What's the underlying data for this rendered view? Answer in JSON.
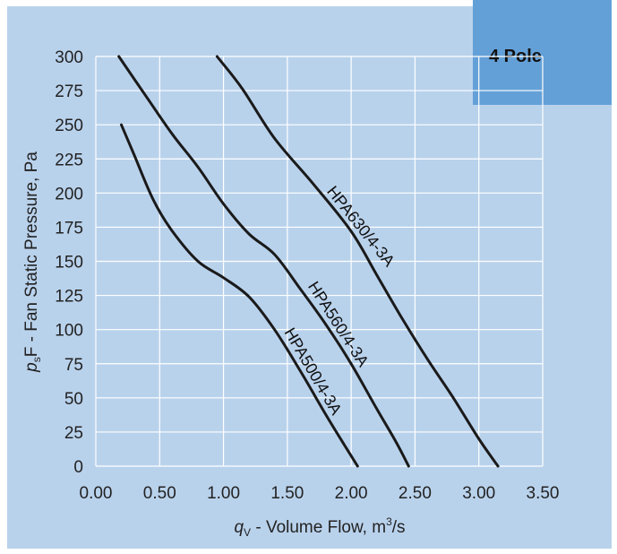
{
  "badge": {
    "label": "4 Pole"
  },
  "chart_data": {
    "type": "line",
    "xlabel": {
      "italic": "q",
      "sub": "V",
      "rest": " - Volume Flow, m",
      "sup": "3",
      "tail": "/s"
    },
    "ylabel": {
      "italic": "p",
      "sub": "s",
      "rest": "F - Fan Static Pressure, Pa"
    },
    "x_ticks": [
      "0.00",
      "0.50",
      "1.00",
      "1.50",
      "2.00",
      "2.50",
      "3.00",
      "3.50"
    ],
    "y_ticks": [
      "0",
      "25",
      "50",
      "75",
      "100",
      "125",
      "150",
      "175",
      "200",
      "225",
      "250",
      "275",
      "300"
    ],
    "xlim": [
      0,
      3.5
    ],
    "ylim": [
      0,
      300
    ],
    "grid": true,
    "colors": {
      "curve": "#1a1a1a",
      "panel": "#b9d2ec",
      "badge": "#64a0d8",
      "grid": "#ffffff"
    },
    "series": [
      {
        "name": "HPA500/4-3A",
        "x": [
          0.2,
          0.3,
          0.45,
          0.6,
          0.8,
          1.0,
          1.2,
          1.4,
          1.6,
          1.8,
          1.95,
          2.05
        ],
        "y": [
          250,
          228,
          195,
          172,
          150,
          138,
          124,
          100,
          70,
          38,
          15,
          0
        ]
      },
      {
        "name": "HPA560/4-3A",
        "x": [
          0.18,
          0.4,
          0.6,
          0.8,
          1.0,
          1.2,
          1.4,
          1.6,
          1.8,
          2.0,
          2.2,
          2.35,
          2.45
        ],
        "y": [
          300,
          270,
          243,
          219,
          192,
          170,
          155,
          130,
          104,
          75,
          42,
          18,
          0
        ]
      },
      {
        "name": "HPA630/4-3A",
        "x": [
          0.95,
          1.15,
          1.4,
          1.7,
          2.0,
          2.2,
          2.4,
          2.6,
          2.8,
          3.0,
          3.15
        ],
        "y": [
          300,
          276,
          240,
          207,
          172,
          140,
          108,
          78,
          50,
          20,
          0
        ]
      }
    ]
  }
}
